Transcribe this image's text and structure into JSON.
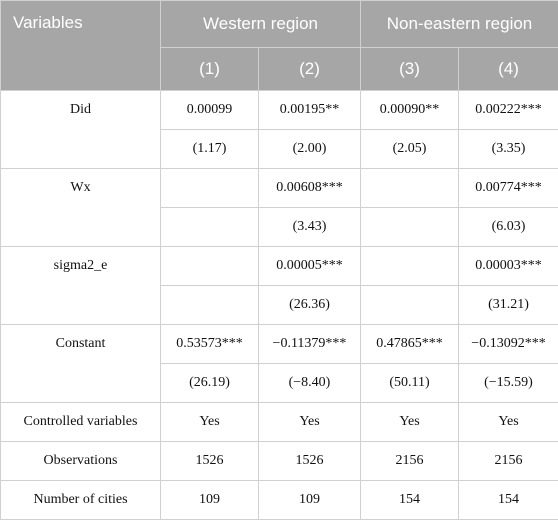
{
  "header": {
    "variables": "Variables",
    "groups": [
      "Western region",
      "Non-eastern region"
    ],
    "columns": [
      "(1)",
      "(2)",
      "(3)",
      "(4)"
    ]
  },
  "paired_rows": [
    {
      "label": "Did",
      "coef": [
        "0.00099",
        "0.00195**",
        "0.00090**",
        "0.00222***"
      ],
      "t": [
        "(1.17)",
        "(2.00)",
        "(2.05)",
        "(3.35)"
      ]
    },
    {
      "label": "Wx",
      "coef": [
        null,
        "0.00608***",
        null,
        "0.00774***"
      ],
      "t": [
        null,
        "(3.43)",
        null,
        "(6.03)"
      ]
    },
    {
      "label": "sigma2_e",
      "coef": [
        null,
        "0.00005***",
        null,
        "0.00003***"
      ],
      "t": [
        null,
        "(26.36)",
        null,
        "(31.21)"
      ]
    },
    {
      "label": "Constant",
      "coef": [
        "0.53573***",
        "−0.11379***",
        "0.47865***",
        "−0.13092***"
      ],
      "t": [
        "(26.19)",
        "(−8.40)",
        "(50.11)",
        "(−15.59)"
      ]
    }
  ],
  "single_rows": [
    {
      "label": "Controlled variables",
      "values": [
        "Yes",
        "Yes",
        "Yes",
        "Yes"
      ]
    },
    {
      "label": "Observations",
      "values": [
        "1526",
        "1526",
        "2156",
        "2156"
      ]
    },
    {
      "label": "Number of cities",
      "values": [
        "109",
        "109",
        "154",
        "154"
      ]
    }
  ]
}
